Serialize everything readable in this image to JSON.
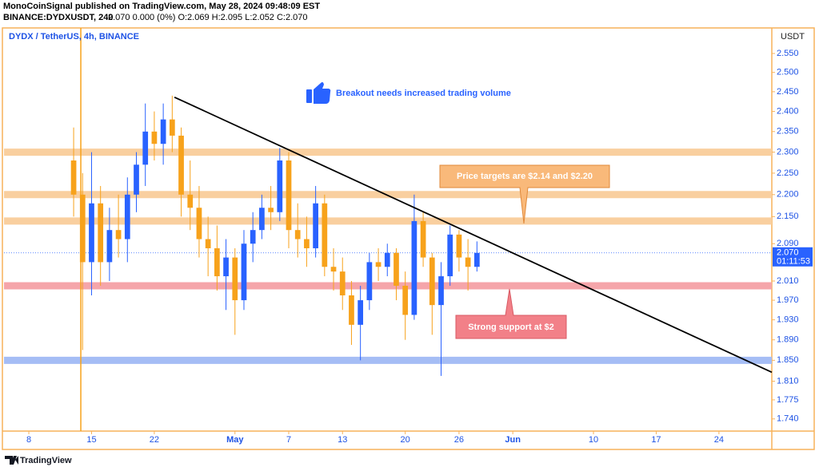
{
  "header": {
    "publisher": "MonoCoinSignal published on TradingView.com, May 28, 2024 09:48:09 EST",
    "symbol": "BINANCE:DYDXUSDT, 240",
    "quote": "2.070 0.000 (0%) O:2.069 H:2.095 L:2.052 C:2.070"
  },
  "chart_data": {
    "type": "candlestick",
    "title": "DYDX / TetherUS, 4h, BINANCE",
    "y_axis_label": "USDT",
    "log_scale": true,
    "grid": false,
    "up_color": "#2962ff",
    "down_color": "#f7a21b",
    "x": [
      5,
      6,
      7,
      8,
      9,
      10,
      11,
      12,
      13,
      14,
      15,
      16,
      17,
      18,
      19,
      20,
      21,
      22,
      23,
      24,
      25,
      26,
      27,
      28,
      29,
      30,
      31,
      32,
      33,
      34,
      35,
      36,
      37,
      38,
      39,
      40,
      41,
      42,
      43,
      44,
      45,
      46,
      47,
      48,
      49,
      50
    ],
    "open": [
      2.28,
      2.2,
      2.05,
      2.18,
      2.05,
      2.12,
      2.1,
      2.2,
      2.27,
      2.35,
      2.32,
      2.38,
      2.34,
      2.2,
      2.17,
      2.1,
      2.08,
      2.02,
      2.06,
      1.97,
      2.09,
      2.12,
      2.17,
      2.16,
      2.28,
      2.12,
      2.1,
      2.08,
      2.18,
      2.04,
      2.03,
      1.98,
      1.92,
      1.97,
      2.05,
      2.04,
      2.07,
      2.0,
      1.94,
      2.14,
      2.06,
      1.96,
      2.02,
      2.11,
      2.06,
      2.04
    ],
    "high": [
      2.36,
      2.25,
      2.3,
      2.22,
      2.17,
      2.2,
      2.24,
      2.3,
      2.42,
      2.4,
      2.42,
      2.44,
      2.36,
      2.28,
      2.22,
      2.15,
      2.13,
      2.1,
      2.08,
      2.12,
      2.16,
      2.2,
      2.22,
      2.31,
      2.3,
      2.18,
      2.15,
      2.22,
      2.2,
      2.08,
      2.06,
      2.01,
      2.0,
      2.07,
      2.08,
      2.09,
      2.08,
      2.03,
      2.2,
      2.16,
      2.07,
      2.05,
      2.13,
      2.12,
      2.1,
      2.095
    ],
    "low": [
      2.15,
      1.87,
      1.98,
      2.0,
      2.01,
      2.06,
      2.05,
      2.16,
      2.22,
      2.28,
      2.27,
      2.3,
      2.15,
      2.12,
      2.06,
      2.02,
      1.99,
      1.95,
      1.9,
      1.95,
      2.05,
      2.1,
      2.12,
      2.14,
      2.08,
      2.06,
      2.04,
      2.06,
      2.02,
      1.99,
      1.95,
      1.88,
      1.85,
      1.95,
      2.01,
      2.02,
      1.97,
      1.89,
      1.93,
      2.04,
      1.9,
      1.82,
      2.0,
      2.03,
      1.99,
      2.03
    ],
    "close": [
      2.2,
      2.05,
      2.18,
      2.05,
      2.12,
      2.1,
      2.2,
      2.27,
      2.35,
      2.32,
      2.38,
      2.34,
      2.2,
      2.17,
      2.1,
      2.08,
      2.02,
      2.06,
      1.97,
      2.09,
      2.12,
      2.17,
      2.16,
      2.28,
      2.12,
      2.1,
      2.08,
      2.18,
      2.04,
      2.03,
      1.98,
      1.92,
      1.97,
      2.05,
      2.04,
      2.07,
      2.0,
      1.94,
      2.14,
      2.06,
      1.96,
      2.02,
      2.11,
      2.06,
      2.04,
      2.07
    ],
    "xlim": [
      -2.77,
      82.9
    ],
    "ylim": [
      1.718,
      2.619
    ],
    "xticks": [
      {
        "value": 0,
        "label": "8"
      },
      {
        "value": 7,
        "label": "15"
      },
      {
        "value": 14,
        "label": "22"
      },
      {
        "value": 23,
        "label": "May"
      },
      {
        "value": 29,
        "label": "7"
      },
      {
        "value": 35,
        "label": "13"
      },
      {
        "value": 42,
        "label": "20"
      },
      {
        "value": 48,
        "label": "26"
      },
      {
        "value": 54,
        "label": "Jun"
      },
      {
        "value": 63,
        "label": "10"
      },
      {
        "value": 70,
        "label": "17"
      },
      {
        "value": 77,
        "label": "24"
      }
    ],
    "yticks": [
      {
        "value": 2.55,
        "label": "2.550"
      },
      {
        "value": 2.5,
        "label": "2.500"
      },
      {
        "value": 2.45,
        "label": "2.450"
      },
      {
        "value": 2.4,
        "label": "2.400"
      },
      {
        "value": 2.35,
        "label": "2.350"
      },
      {
        "value": 2.3,
        "label": "2.300"
      },
      {
        "value": 2.25,
        "label": "2.250"
      },
      {
        "value": 2.2,
        "label": "2.200"
      },
      {
        "value": 2.15,
        "label": "2.150"
      },
      {
        "value": 2.09,
        "label": "2.090"
      },
      {
        "value": 2.01,
        "label": "2.010"
      },
      {
        "value": 1.97,
        "label": "1.970"
      },
      {
        "value": 1.93,
        "label": "1.930"
      },
      {
        "value": 1.89,
        "label": "1.890"
      },
      {
        "value": 1.85,
        "label": "1.850"
      },
      {
        "value": 1.81,
        "label": "1.810"
      },
      {
        "value": 1.775,
        "label": "1.775"
      },
      {
        "value": 1.74,
        "label": "1.740"
      }
    ],
    "levels": [
      {
        "value": 2.3,
        "color": "#f9cf9f"
      },
      {
        "value": 2.2,
        "color": "#f9cf9f"
      },
      {
        "value": 2.14,
        "color": "#f9cf9f"
      },
      {
        "value": 2.0,
        "color": "#f5a5aa"
      },
      {
        "value": 1.85,
        "color": "#a5bdf5"
      }
    ],
    "trend_line": {
      "x": [
        16.25,
        82.9
      ],
      "y": [
        2.436,
        1.827
      ],
      "color": "#000000"
    },
    "vertical_line": {
      "x": 5.8,
      "color": "#f7a21b"
    },
    "last_price": {
      "value": 2.07,
      "label": "2.070",
      "countdown": "01:11:53",
      "color": "#2962ff"
    },
    "annotations": {
      "headline": "Breakout needs increased trading volume",
      "targets": "Price targets are $2.14 and $2.20",
      "support": "Strong support at $2"
    },
    "brand": "TradingView"
  }
}
